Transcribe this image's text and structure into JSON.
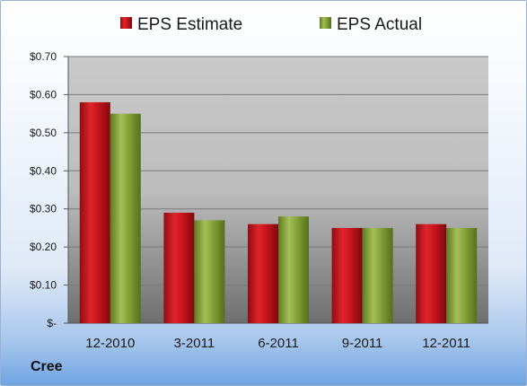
{
  "company": "Cree",
  "colors": {
    "estimate": "#c0141c",
    "actual": "#86a238"
  },
  "chart_data": {
    "type": "bar",
    "categories": [
      "12-2010",
      "3-2011",
      "6-2011",
      "9-2011",
      "12-2011"
    ],
    "series": [
      {
        "name": "EPS Estimate",
        "values": [
          0.58,
          0.29,
          0.26,
          0.25,
          0.26
        ]
      },
      {
        "name": "EPS Actual",
        "values": [
          0.55,
          0.27,
          0.28,
          0.25,
          0.25
        ]
      }
    ],
    "ylim": [
      0,
      0.7
    ],
    "yticks": [
      0,
      0.1,
      0.2,
      0.3,
      0.4,
      0.5,
      0.6,
      0.7
    ],
    "ytick_labels": [
      "$-",
      "$0.10",
      "$0.20",
      "$0.30",
      "$0.40",
      "$0.50",
      "$0.60",
      "$0.70"
    ],
    "legend": "top",
    "grid": true
  }
}
